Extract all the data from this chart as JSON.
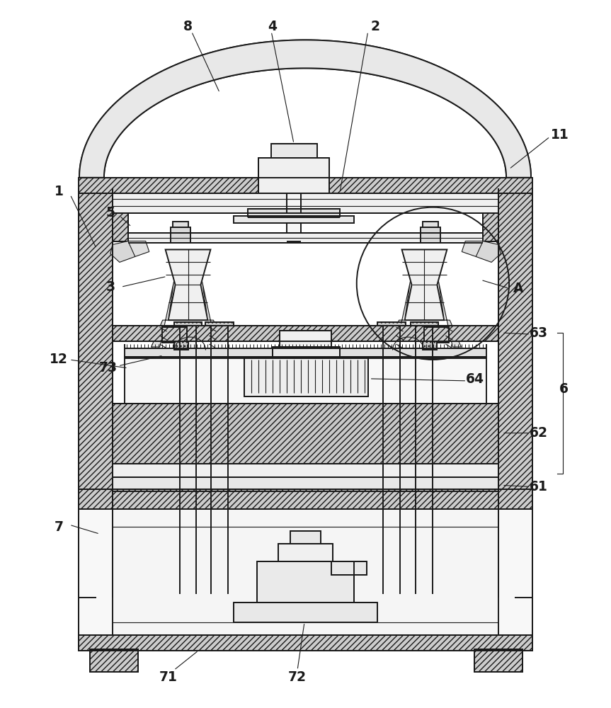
{
  "bg_color": "#ffffff",
  "line_color": "#1a1a1a",
  "label_color": "#1a1a1a",
  "fig_width": 8.63,
  "fig_height": 10.0
}
